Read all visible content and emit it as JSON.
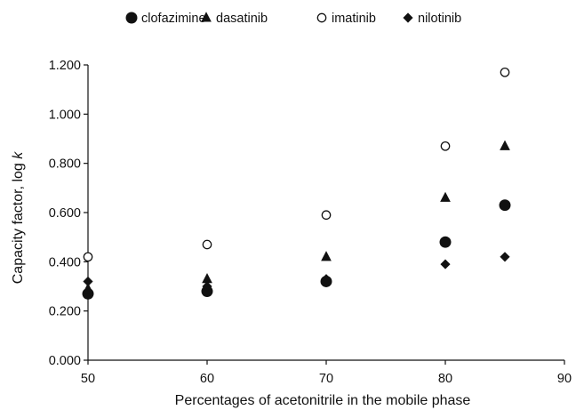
{
  "chart_data": {
    "type": "scatter",
    "title": "",
    "xlabel": "Percentages of acetonitrile in the mobile phase",
    "ylabel": {
      "prefix": "Capacity factor, log ",
      "italic": "k"
    },
    "xlim": [
      50,
      90
    ],
    "ylim": [
      0.0,
      1.2
    ],
    "x_ticks": [
      50,
      60,
      70,
      80,
      90
    ],
    "x_tick_labels": [
      "50",
      "60",
      "70",
      "80",
      "90"
    ],
    "y_ticks": [
      0.0,
      0.2,
      0.4,
      0.6,
      0.8,
      1.0,
      1.2
    ],
    "y_tick_labels": [
      "0.000",
      "0.200",
      "0.400",
      "0.600",
      "0.800",
      "1.000",
      "1.200"
    ],
    "grid": false,
    "legend_position": "top",
    "colors": {
      "ink": "#111111",
      "background": "#ffffff"
    },
    "series": [
      {
        "name": "clofazimine",
        "marker": "filled-circle",
        "points": [
          {
            "x": 50,
            "y": 0.27
          },
          {
            "x": 60,
            "y": 0.28
          },
          {
            "x": 70,
            "y": 0.32
          },
          {
            "x": 80,
            "y": 0.48
          },
          {
            "x": 85,
            "y": 0.63
          }
        ]
      },
      {
        "name": "dasatinib",
        "marker": "filled-triangle",
        "points": [
          {
            "x": 50,
            "y": 0.29
          },
          {
            "x": 60,
            "y": 0.33
          },
          {
            "x": 70,
            "y": 0.42
          },
          {
            "x": 80,
            "y": 0.66
          },
          {
            "x": 85,
            "y": 0.87
          }
        ]
      },
      {
        "name": "imatinib",
        "marker": "open-circle",
        "points": [
          {
            "x": 50,
            "y": 0.42
          },
          {
            "x": 60,
            "y": 0.47
          },
          {
            "x": 70,
            "y": 0.59
          },
          {
            "x": 80,
            "y": 0.87
          },
          {
            "x": 85,
            "y": 1.17
          }
        ]
      },
      {
        "name": "nilotinib",
        "marker": "filled-diamond",
        "points": [
          {
            "x": 50,
            "y": 0.32
          },
          {
            "x": 60,
            "y": 0.3
          },
          {
            "x": 70,
            "y": 0.33
          },
          {
            "x": 80,
            "y": 0.39
          },
          {
            "x": 85,
            "y": 0.42
          }
        ]
      }
    ]
  }
}
